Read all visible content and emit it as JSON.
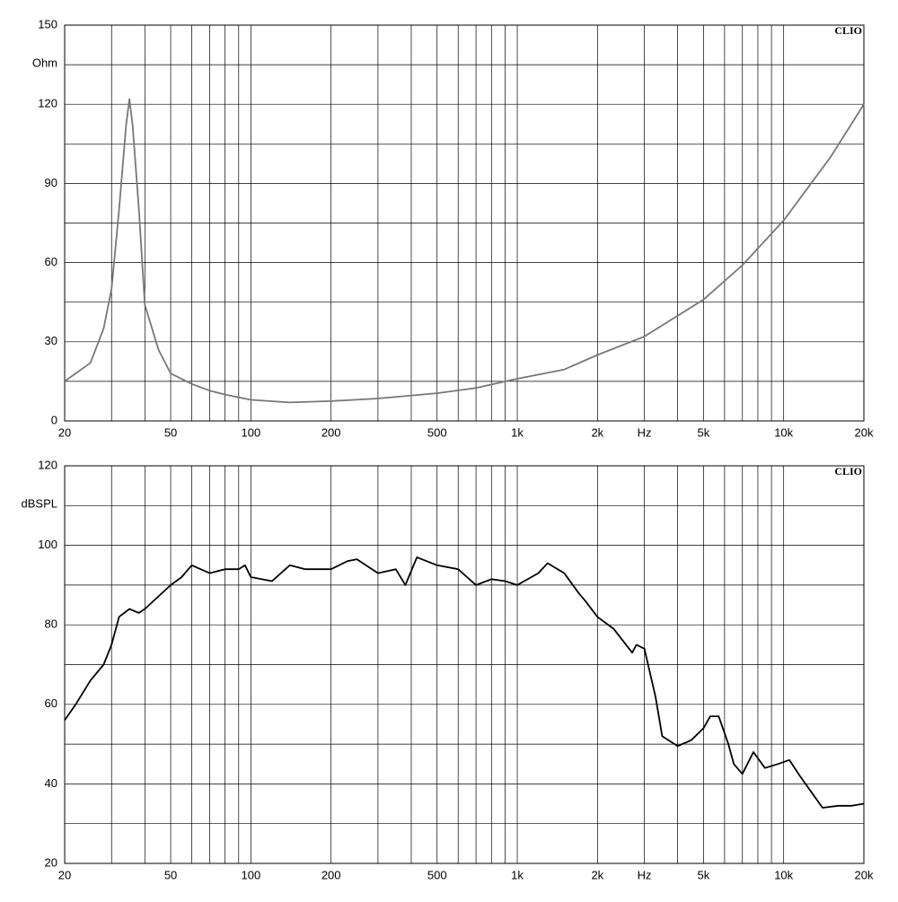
{
  "chart_data": [
    {
      "type": "line",
      "annotation": "CLIO",
      "ylabel": "Ohm",
      "xscale": "log",
      "grid": true,
      "color": "#777777",
      "xlim": [
        20,
        20000
      ],
      "ylim": [
        0,
        150
      ],
      "xticks": [
        20,
        50,
        100,
        200,
        500,
        {
          "value": 1000,
          "label": "1k"
        },
        {
          "value": 2000,
          "label": "2k"
        },
        {
          "value": 3000,
          "label": "Hz"
        },
        {
          "value": 5000,
          "label": "5k"
        },
        {
          "value": 10000,
          "label": "10k"
        },
        {
          "value": 20000,
          "label": "20k"
        }
      ],
      "x_minor_ticks": [
        30,
        40,
        60,
        70,
        80,
        90,
        300,
        400,
        600,
        700,
        800,
        900,
        4000,
        6000,
        7000,
        8000,
        9000
      ],
      "yticks": [
        0,
        30,
        60,
        90,
        120,
        150
      ],
      "y_minor_ticks": [
        15,
        45,
        75,
        105,
        135
      ],
      "x": [
        20,
        25,
        28,
        30,
        32,
        34,
        35,
        36,
        38,
        40,
        45,
        50,
        60,
        70,
        80,
        100,
        140,
        200,
        300,
        500,
        700,
        1000,
        1500,
        2000,
        3000,
        5000,
        7000,
        10000,
        15000,
        20000
      ],
      "values": [
        15,
        22,
        35,
        50,
        80,
        112,
        122,
        112,
        80,
        44,
        27,
        18,
        14,
        11.5,
        10,
        8,
        7,
        7.5,
        8.5,
        10.5,
        12.5,
        16,
        19.5,
        25,
        32,
        46,
        59,
        76,
        100,
        120
      ]
    },
    {
      "type": "line",
      "annotation": "CLIO",
      "ylabel": "dBSPL",
      "xscale": "log",
      "grid": true,
      "color": "#000000",
      "xlim": [
        20,
        20000
      ],
      "ylim": [
        20,
        120
      ],
      "xticks": [
        20,
        50,
        100,
        200,
        500,
        {
          "value": 1000,
          "label": "1k"
        },
        {
          "value": 2000,
          "label": "2k"
        },
        {
          "value": 3000,
          "label": "Hz"
        },
        {
          "value": 5000,
          "label": "5k"
        },
        {
          "value": 10000,
          "label": "10k"
        },
        {
          "value": 20000,
          "label": "20k"
        }
      ],
      "x_minor_ticks": [
        30,
        40,
        60,
        70,
        80,
        90,
        300,
        400,
        600,
        700,
        800,
        900,
        4000,
        6000,
        7000,
        8000,
        9000
      ],
      "yticks": [
        20,
        40,
        60,
        80,
        100,
        120
      ],
      "y_minor_ticks": [
        30,
        50,
        70,
        90,
        110
      ],
      "x": [
        20,
        22,
        25,
        28,
        30,
        32,
        35,
        38,
        40,
        50,
        55,
        60,
        70,
        80,
        90,
        95,
        100,
        120,
        140,
        160,
        200,
        230,
        250,
        300,
        350,
        380,
        420,
        500,
        600,
        700,
        800,
        900,
        1000,
        1200,
        1300,
        1500,
        1700,
        1800,
        2000,
        2300,
        2700,
        2800,
        3000,
        3300,
        3500,
        4000,
        4500,
        5000,
        5300,
        5700,
        6200,
        6500,
        7000,
        7700,
        8500,
        9500,
        10500,
        11500,
        13000,
        14000,
        16000,
        18000,
        20000
      ],
      "values": [
        56,
        60,
        66,
        70,
        75,
        82,
        84,
        83,
        84,
        90,
        92,
        95,
        93,
        94,
        94,
        95,
        92,
        91,
        95,
        94,
        94,
        96,
        96.5,
        93,
        94,
        90,
        97,
        95,
        94,
        90,
        91.5,
        91,
        90,
        93,
        95.5,
        93,
        88,
        86,
        82,
        79,
        73,
        75,
        74,
        62,
        52,
        49.5,
        51,
        54,
        57,
        57,
        50,
        45,
        42.5,
        48,
        44,
        45,
        46,
        42,
        37,
        34,
        34.5,
        34.5,
        35
      ]
    }
  ]
}
